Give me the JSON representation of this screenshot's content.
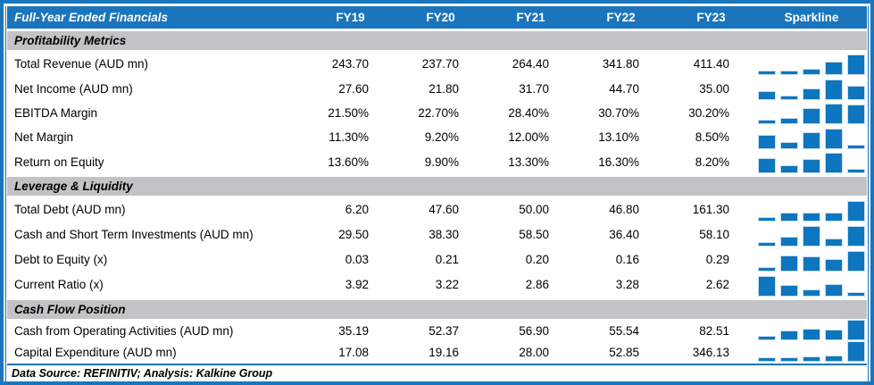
{
  "colors": {
    "brand_blue": "#1B75BC",
    "sparkline_bar_blue": "#0E76BE",
    "section_band_gray": "#C3C3C5",
    "text_black": "#000000"
  },
  "header": {
    "title": "Full-Year Ended Financials",
    "year_columns": [
      "FY19",
      "FY20",
      "FY21",
      "FY22",
      "FY23"
    ],
    "sparkline_label": "Sparkline"
  },
  "chart_data": {
    "type": "table",
    "title": "Full-Year Ended Financials",
    "categories": [
      "FY19",
      "FY20",
      "FY21",
      "FY22",
      "FY23"
    ],
    "sparkline_style": "column-mini-chart, min-max scaled per row",
    "sections": [
      {
        "title": "Profitability Metrics",
        "rows": [
          {
            "label": "Total Revenue (AUD mn)",
            "values": [
              "243.70",
              "237.70",
              "264.40",
              "341.80",
              "411.40"
            ],
            "sparkline": [
              243.7,
              237.7,
              264.4,
              341.8,
              411.4
            ]
          },
          {
            "label": "Net Income (AUD mn)",
            "values": [
              "27.60",
              "21.80",
              "31.70",
              "44.70",
              "35.00"
            ],
            "sparkline": [
              27.6,
              21.8,
              31.7,
              44.7,
              35.0
            ]
          },
          {
            "label": "EBITDA Margin",
            "values": [
              "21.50%",
              "22.70%",
              "28.40%",
              "30.70%",
              "30.20%"
            ],
            "sparkline": [
              21.5,
              22.7,
              28.4,
              30.7,
              30.2
            ]
          },
          {
            "label": "Net Margin",
            "values": [
              "11.30%",
              "9.20%",
              "12.00%",
              "13.10%",
              "8.50%"
            ],
            "sparkline": [
              11.3,
              9.2,
              12.0,
              13.1,
              8.5
            ]
          },
          {
            "label": "Return on Equity",
            "values": [
              "13.60%",
              "9.90%",
              "13.30%",
              "16.30%",
              "8.20%"
            ],
            "sparkline": [
              13.6,
              9.9,
              13.3,
              16.3,
              8.2
            ]
          }
        ]
      },
      {
        "title": "Leverage & Liquidity",
        "rows": [
          {
            "label": "Total Debt (AUD mn)",
            "values": [
              "6.20",
              "47.60",
              "50.00",
              "46.80",
              "161.30"
            ],
            "sparkline": [
              6.2,
              47.6,
              50.0,
              46.8,
              161.3
            ]
          },
          {
            "label": "Cash and Short Term Investments (AUD mn)",
            "values": [
              "29.50",
              "38.30",
              "58.50",
              "36.40",
              "58.10"
            ],
            "sparkline": [
              29.5,
              38.3,
              58.5,
              36.4,
              58.1
            ]
          },
          {
            "label": "Debt to Equity (x)",
            "values": [
              "0.03",
              "0.21",
              "0.20",
              "0.16",
              "0.29"
            ],
            "sparkline": [
              0.03,
              0.21,
              0.2,
              0.16,
              0.29
            ]
          },
          {
            "label": "Current Ratio (x)",
            "values": [
              "3.92",
              "3.22",
              "2.86",
              "3.28",
              "2.62"
            ],
            "sparkline": [
              3.92,
              3.22,
              2.86,
              3.28,
              2.62
            ]
          }
        ]
      },
      {
        "title": "Cash Flow Position",
        "rows": [
          {
            "label": "Cash from Operating Activities (AUD mn)",
            "values": [
              "35.19",
              "52.37",
              "56.90",
              "55.54",
              "82.51"
            ],
            "sparkline": [
              35.19,
              52.37,
              56.9,
              55.54,
              82.51
            ]
          },
          {
            "label": "Capital Expenditure (AUD mn)",
            "values": [
              "17.08",
              "19.16",
              "28.00",
              "52.85",
              "346.13"
            ],
            "sparkline": [
              17.08,
              19.16,
              28.0,
              52.85,
              346.13
            ]
          }
        ]
      }
    ]
  },
  "footer": {
    "text": "Data Source: REFINITIV; Analysis: Kalkine Group"
  }
}
